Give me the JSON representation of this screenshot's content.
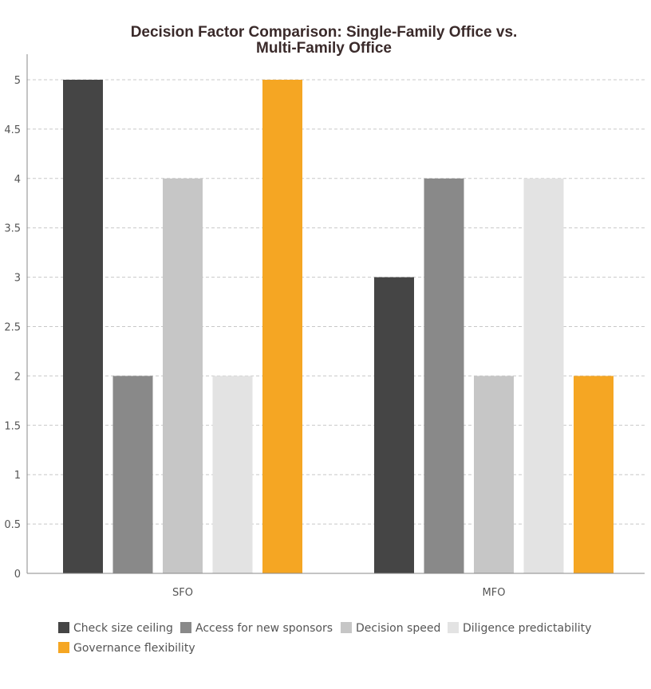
{
  "chart_data": {
    "type": "bar",
    "title_lines": [
      "Decision Factor Comparison: Single-Family Office vs.",
      "Multi-Family Office"
    ],
    "categories": [
      "SFO",
      "MFO"
    ],
    "series": [
      {
        "name": "Check size ceiling",
        "values": [
          5,
          3
        ],
        "color": "#454545"
      },
      {
        "name": "Access for new sponsors",
        "values": [
          2,
          4
        ],
        "color": "#898989"
      },
      {
        "name": "Decision speed",
        "values": [
          4,
          2
        ],
        "color": "#c6c6c6"
      },
      {
        "name": "Diligence predictability",
        "values": [
          2,
          4
        ],
        "color": "#e3e3e3"
      },
      {
        "name": "Governance flexibility",
        "values": [
          5,
          2
        ],
        "color": "#f5a623"
      }
    ],
    "ylim": [
      0,
      5
    ],
    "yticks": [
      "0",
      "0.5",
      "1",
      "1.5",
      "2",
      "2.5",
      "3",
      "3.5",
      "4",
      "4.5",
      "5"
    ],
    "grid": true,
    "legend_position": "bottom"
  }
}
